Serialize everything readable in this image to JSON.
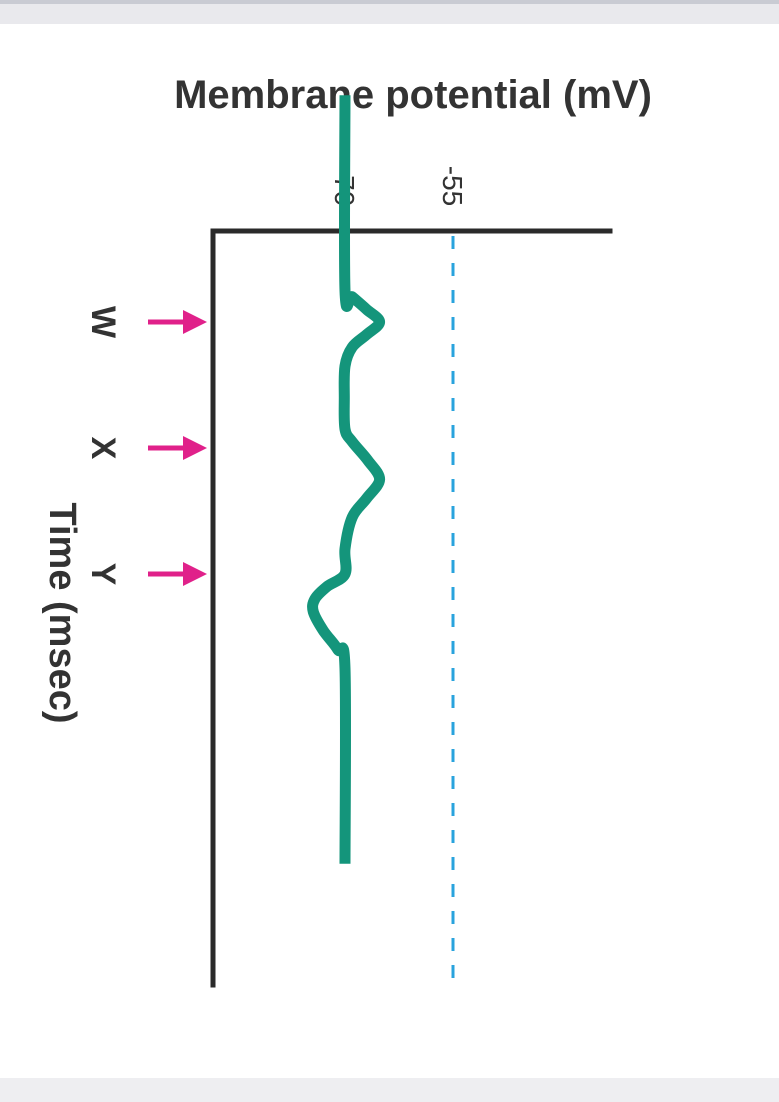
{
  "chart_data": {
    "type": "line",
    "orientation": "rotated (time runs downward, potential increases to the right)",
    "xlabel": "Time (msec)",
    "ylabel": "Membrane potential (mV)",
    "ytick_labels": [
      "-70",
      "-55"
    ],
    "threshold": {
      "value": -55,
      "style": "dashed",
      "color": "#29a3dd"
    },
    "stimulus_markers": [
      {
        "label": "W",
        "time": 1.0
      },
      {
        "label": "X",
        "time": 2.0
      },
      {
        "label": "Y",
        "time": 3.0
      }
    ],
    "series": [
      {
        "color": "#14957b",
        "points": [
          {
            "time": -0.8,
            "mV": -70.0
          },
          {
            "time": 0.75,
            "mV": -70.0
          },
          {
            "time": 0.8,
            "mV": -69.0
          },
          {
            "time": 0.9,
            "mV": -67.0
          },
          {
            "time": 1.0,
            "mV": -65.2
          },
          {
            "time": 1.1,
            "mV": -67.0
          },
          {
            "time": 1.2,
            "mV": -69.0
          },
          {
            "time": 1.35,
            "mV": -70.0
          },
          {
            "time": 1.6,
            "mV": -70.1
          },
          {
            "time": 1.85,
            "mV": -70.0
          },
          {
            "time": 1.95,
            "mV": -69.0
          },
          {
            "time": 2.1,
            "mV": -66.8
          },
          {
            "time": 2.25,
            "mV": -65.2
          },
          {
            "time": 2.4,
            "mV": -67.0
          },
          {
            "time": 2.55,
            "mV": -69.0
          },
          {
            "time": 2.8,
            "mV": -70.0
          },
          {
            "time": 3.0,
            "mV": -70.0
          },
          {
            "time": 3.1,
            "mV": -72.5
          },
          {
            "time": 3.2,
            "mV": -74.2
          },
          {
            "time": 3.3,
            "mV": -74.4
          },
          {
            "time": 3.45,
            "mV": -73.0
          },
          {
            "time": 3.6,
            "mV": -71.0
          },
          {
            "time": 3.75,
            "mV": -70.0
          },
          {
            "time": 5.3,
            "mV": -70.0
          }
        ]
      }
    ]
  },
  "colors": {
    "trace": "#14957b",
    "threshold": "#29a3dd",
    "arrow": "#e0218a",
    "axis": "#2a2a2a",
    "text": "#333333"
  }
}
